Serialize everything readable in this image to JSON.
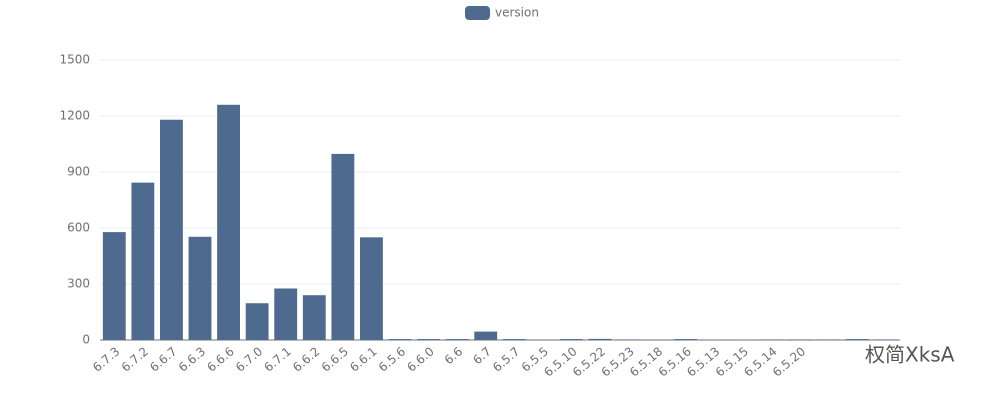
{
  "chart_data": {
    "type": "bar",
    "categories": [
      "6.7.3",
      "6.7.2",
      "6.6.7",
      "6.6.3",
      "6.6.6",
      "6.7.0",
      "6.7.1",
      "6.6.2",
      "6.6.5",
      "6.6.1",
      "6.5.6",
      "6.6.0",
      "6.6",
      "6.7",
      "6.5.7",
      "6.5.5",
      "6.5.10",
      "6.5.22",
      "6.5.23",
      "6.5.18",
      "6.5.16",
      "6.5.13",
      "6.5.15",
      "6.5.14",
      "6.5.20",
      null,
      null,
      null
    ],
    "series": [
      {
        "name": "version",
        "color": "#4f6a8f",
        "values": [
          578,
          843,
          1180,
          553,
          1260,
          197,
          276,
          240,
          997,
          550,
          5,
          5,
          5,
          45,
          5,
          2,
          5,
          6,
          3,
          2,
          5,
          2,
          2,
          3,
          3,
          3,
          5,
          3
        ]
      }
    ],
    "ylim": [
      0,
      1500
    ],
    "yticks": [
      0,
      300,
      600,
      900,
      1200,
      1500
    ],
    "grid": true,
    "watermark": "权简XksA"
  }
}
